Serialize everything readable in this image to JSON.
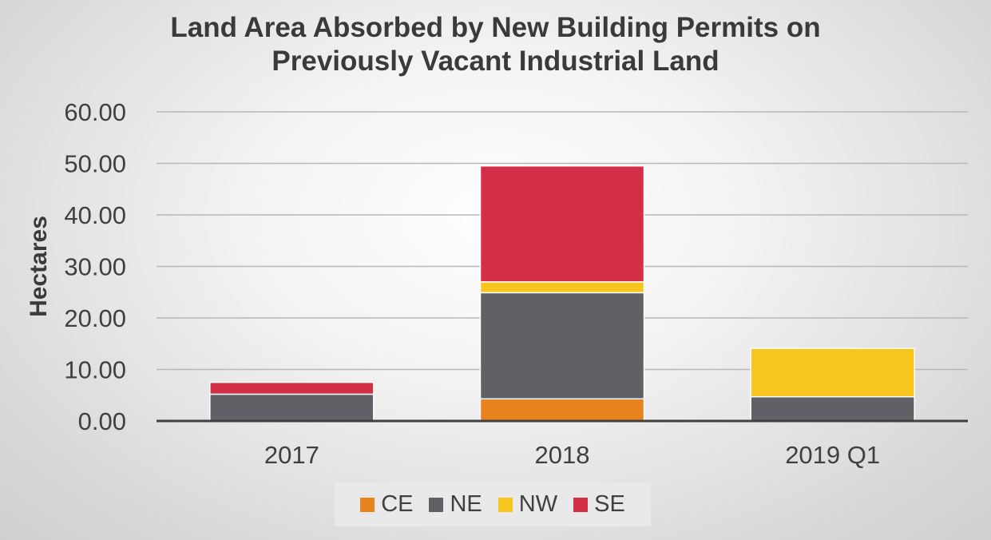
{
  "chart_data": {
    "type": "bar",
    "stacked": true,
    "title_line1": "Land Area Absorbed by New Building Permits on",
    "title_line2": "Previously Vacant Industrial Land",
    "ylabel": "Hectares",
    "xlabel": "",
    "ylim": [
      0,
      60
    ],
    "yticks": [
      "0.00",
      "10.00",
      "20.00",
      "30.00",
      "40.00",
      "50.00",
      "60.00"
    ],
    "categories": [
      "2017",
      "2018",
      "2019 Q1"
    ],
    "series": [
      {
        "name": "CE",
        "color": "#e8821e",
        "values": [
          0,
          4.3,
          0
        ]
      },
      {
        "name": "NE",
        "color": "#5f6166",
        "values": [
          5.2,
          20.6,
          4.7
        ]
      },
      {
        "name": "NW",
        "color": "#f8c41e",
        "values": [
          0,
          2.1,
          9.4
        ]
      },
      {
        "name": "SE",
        "color": "#d32f47",
        "values": [
          2.3,
          22.5,
          0
        ]
      }
    ],
    "grid": true,
    "legend_position": "bottom"
  }
}
